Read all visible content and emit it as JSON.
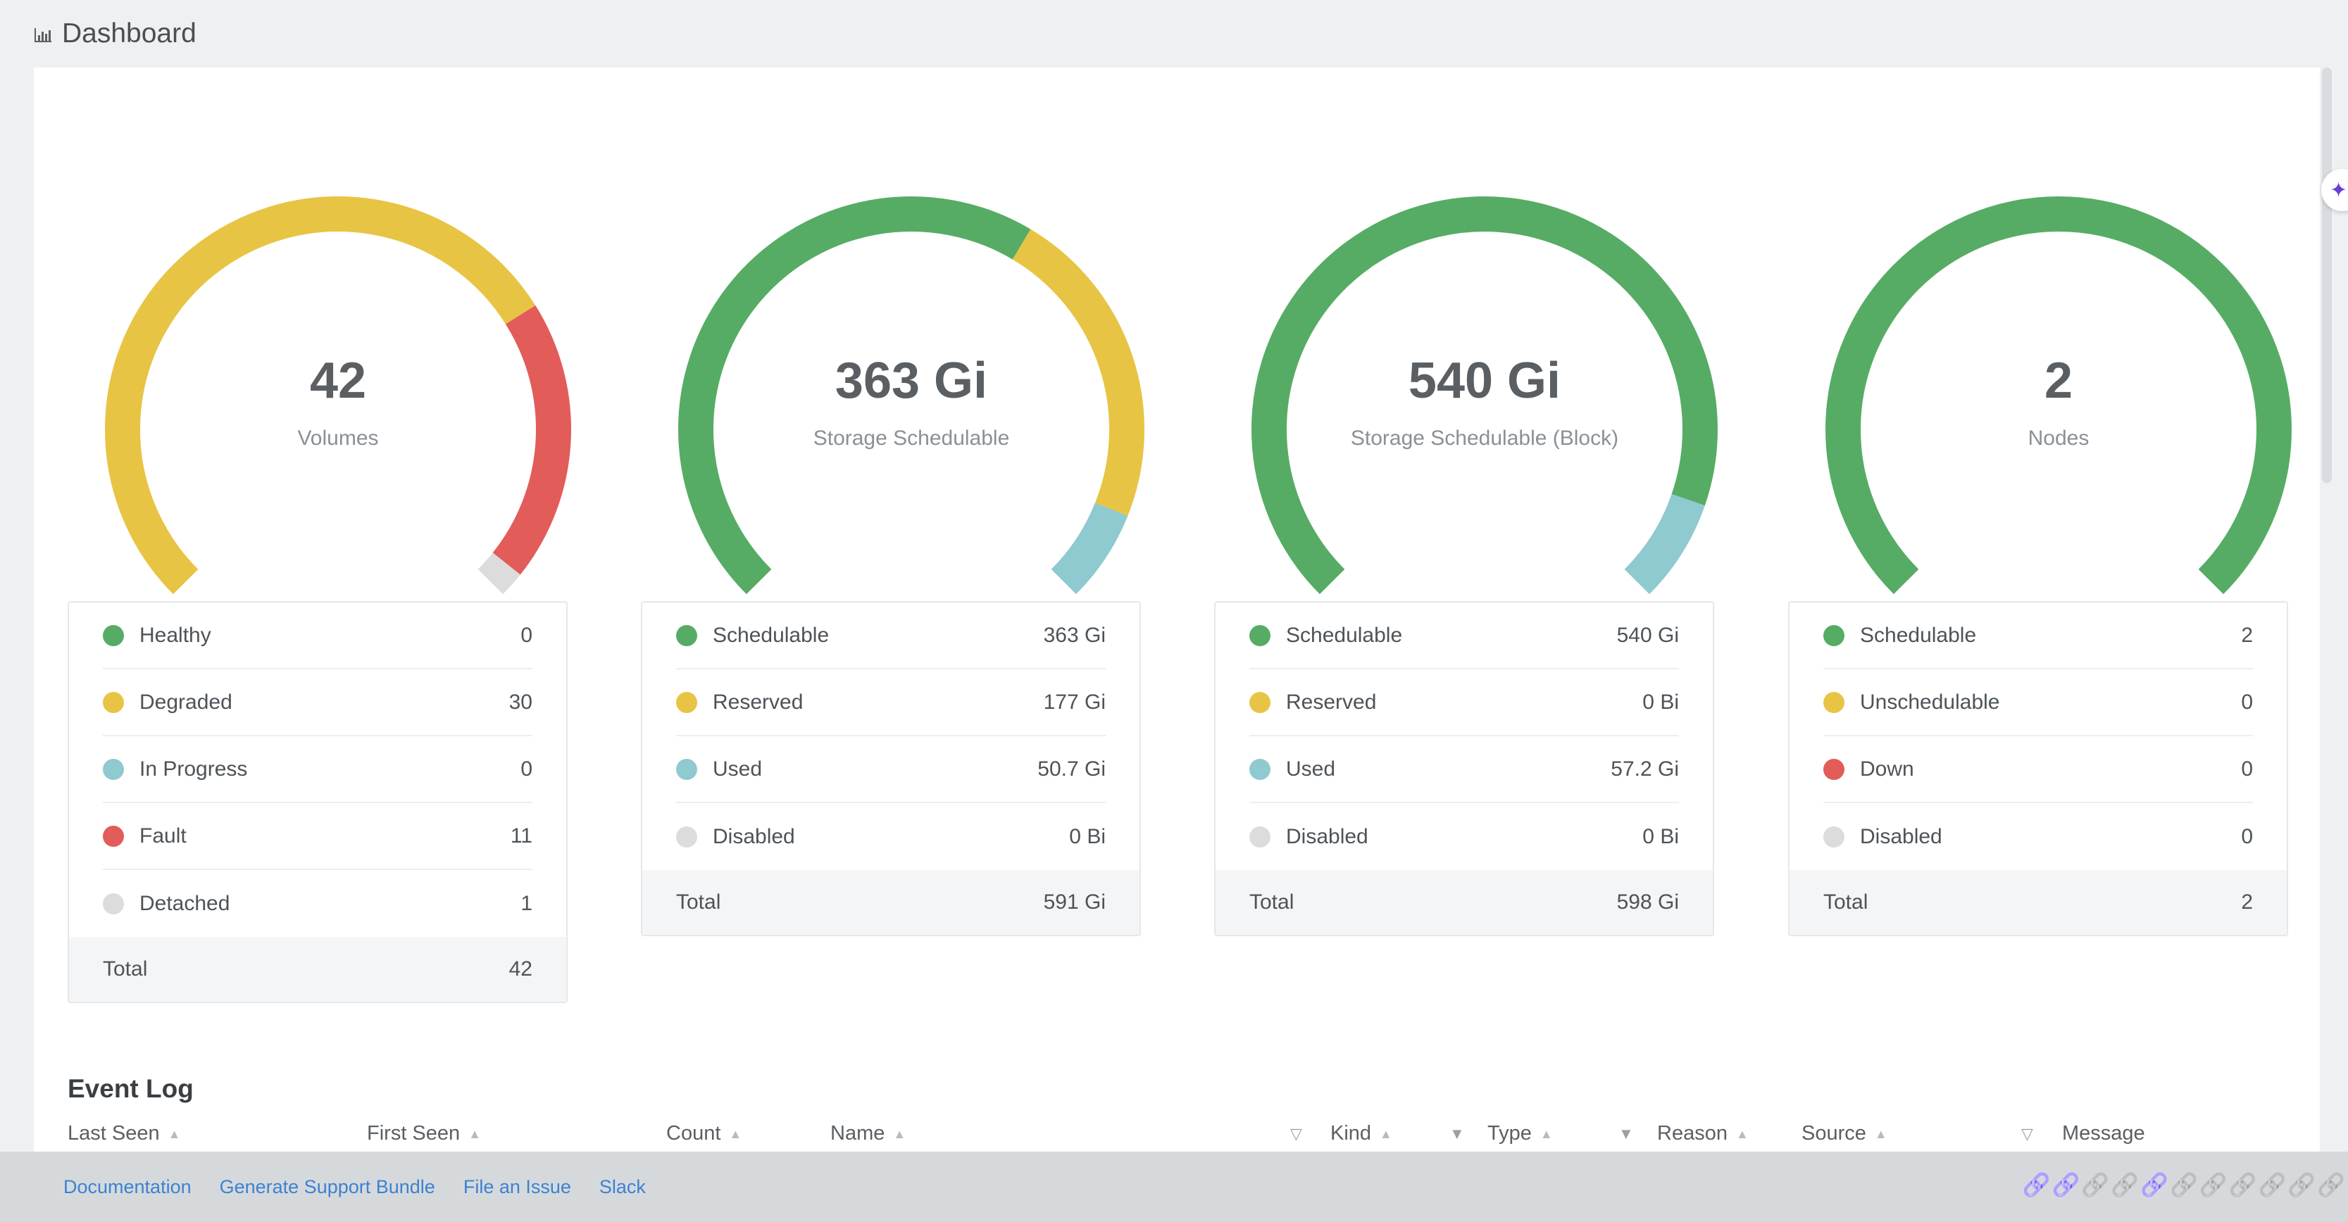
{
  "header": {
    "title": "Dashboard"
  },
  "colors": {
    "healthy": "#56ac64",
    "degraded": "#e8c444",
    "in_progress": "#8ecad0",
    "fault": "#e25c59",
    "detached": "#dcdcdc"
  },
  "gauges": [
    {
      "value": "42",
      "label": "Volumes",
      "segments": [
        {
          "color": "#e8c444",
          "fraction": 0.7143
        },
        {
          "color": "#e25c59",
          "fraction": 0.2619
        },
        {
          "color": "#dcdcdc",
          "fraction": 0.0238
        }
      ],
      "legend": [
        {
          "name": "Healthy",
          "value": "0",
          "color": "#56ac64"
        },
        {
          "name": "Degraded",
          "value": "30",
          "color": "#e8c444"
        },
        {
          "name": "In Progress",
          "value": "0",
          "color": "#8ecad0"
        },
        {
          "name": "Fault",
          "value": "11",
          "color": "#e25c59"
        },
        {
          "name": "Detached",
          "value": "1",
          "color": "#dcdcdc"
        }
      ],
      "total_label": "Total",
      "total_value": "42"
    },
    {
      "value": "363 Gi",
      "label": "Storage Schedulable",
      "segments": [
        {
          "color": "#56ac64",
          "fraction": 0.614
        },
        {
          "color": "#e8c444",
          "fraction": 0.3
        },
        {
          "color": "#8ecad0",
          "fraction": 0.086
        }
      ],
      "legend": [
        {
          "name": "Schedulable",
          "value": "363 Gi",
          "color": "#56ac64"
        },
        {
          "name": "Reserved",
          "value": "177 Gi",
          "color": "#e8c444"
        },
        {
          "name": "Used",
          "value": "50.7 Gi",
          "color": "#8ecad0"
        },
        {
          "name": "Disabled",
          "value": "0 Bi",
          "color": "#dcdcdc"
        }
      ],
      "total_label": "Total",
      "total_value": "591 Gi"
    },
    {
      "value": "540 Gi",
      "label": "Storage Schedulable (Block)",
      "segments": [
        {
          "color": "#56ac64",
          "fraction": 0.904
        },
        {
          "color": "#8ecad0",
          "fraction": 0.096
        }
      ],
      "legend": [
        {
          "name": "Schedulable",
          "value": "540 Gi",
          "color": "#56ac64"
        },
        {
          "name": "Reserved",
          "value": "0 Bi",
          "color": "#e8c444"
        },
        {
          "name": "Used",
          "value": "57.2 Gi",
          "color": "#8ecad0"
        },
        {
          "name": "Disabled",
          "value": "0 Bi",
          "color": "#dcdcdc"
        }
      ],
      "total_label": "Total",
      "total_value": "598 Gi"
    },
    {
      "value": "2",
      "label": "Nodes",
      "segments": [
        {
          "color": "#56ac64",
          "fraction": 1.0
        }
      ],
      "legend": [
        {
          "name": "Schedulable",
          "value": "2",
          "color": "#56ac64"
        },
        {
          "name": "Unschedulable",
          "value": "0",
          "color": "#e8c444"
        },
        {
          "name": "Down",
          "value": "0",
          "color": "#e25c59"
        },
        {
          "name": "Disabled",
          "value": "0",
          "color": "#dcdcdc"
        }
      ],
      "total_label": "Total",
      "total_value": "2"
    }
  ],
  "event_log": {
    "title": "Event Log",
    "columns": [
      "Last Seen",
      "First Seen",
      "Count",
      "Name",
      "Kind",
      "Type",
      "Reason",
      "Source",
      "Message"
    ]
  },
  "footer": {
    "links": [
      "Documentation",
      "Generate Support Bundle",
      "File an Issue",
      "Slack"
    ],
    "status_icons": [
      "green",
      "green",
      "gray",
      "gray",
      "green",
      "gray",
      "gray",
      "gray",
      "gray",
      "gray",
      "gray"
    ]
  }
}
